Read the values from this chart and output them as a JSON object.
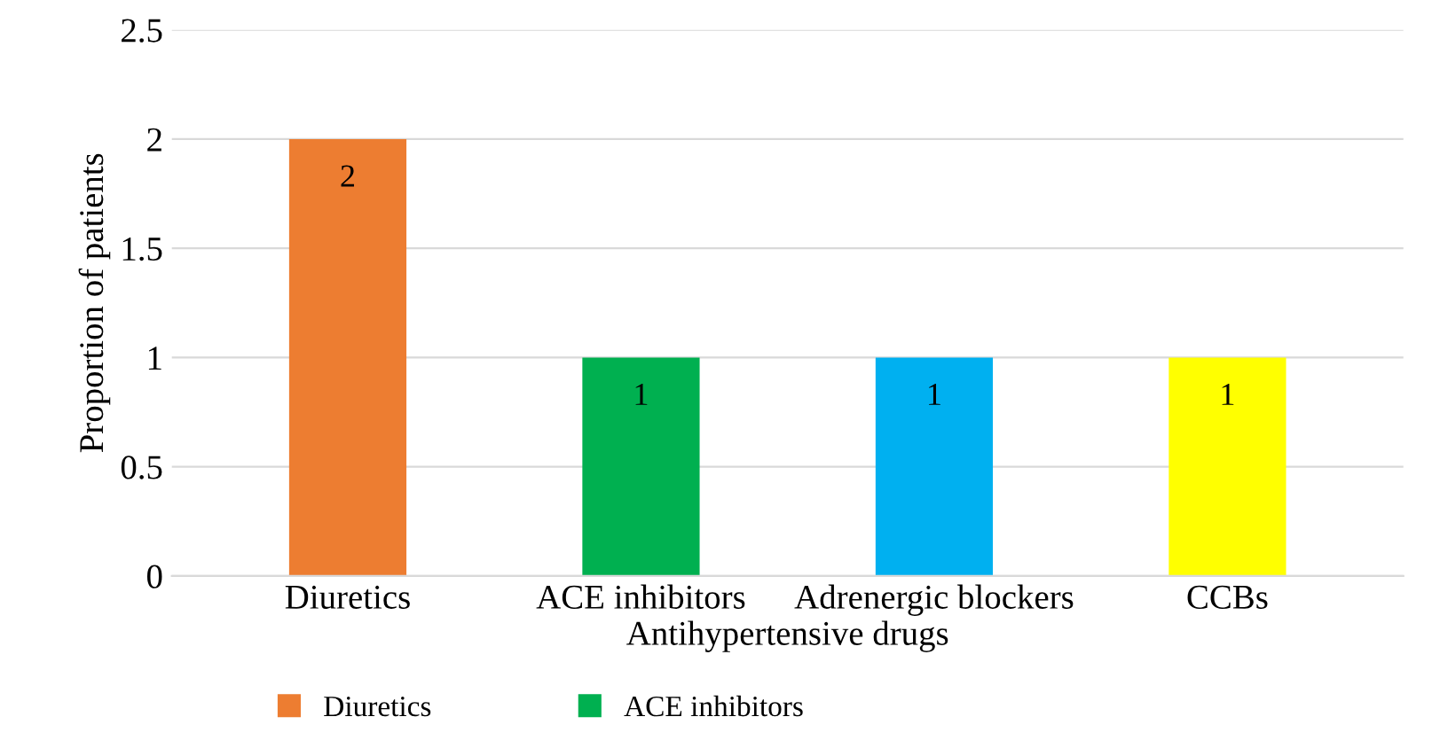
{
  "chart_data": {
    "type": "bar",
    "xlabel": "Antihypertensive drugs",
    "ylabel": "Proportion of patients",
    "categories": [
      "Diuretics",
      "ACE inhibitors",
      "Adrenergic blockers",
      "CCBs"
    ],
    "series": [
      {
        "name": "Diuretics",
        "color": "#ed7d31",
        "values": [
          2,
          null,
          null,
          null
        ]
      },
      {
        "name": "ACE inhibitors",
        "color": "#00b050",
        "values": [
          null,
          1,
          null,
          null
        ]
      },
      {
        "color": "#00b0f0",
        "values": [
          null,
          null,
          1,
          null
        ]
      },
      {
        "color": "#ffff00",
        "values": [
          null,
          null,
          null,
          1
        ]
      }
    ],
    "ylim": [
      0,
      2.5
    ],
    "yticks": [
      0,
      0.5,
      1,
      1.5,
      2,
      2.5
    ],
    "grid": "y",
    "data_labels": true,
    "legend": "bottom"
  }
}
